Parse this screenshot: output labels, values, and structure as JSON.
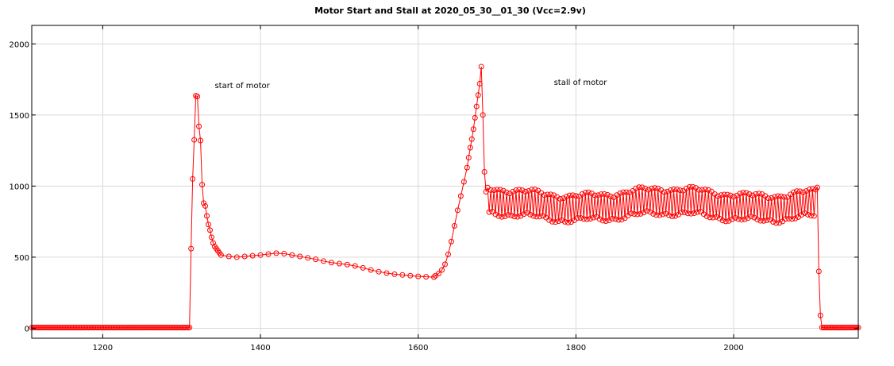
{
  "chart_data": {
    "type": "line",
    "title": "Motor Start and Stall at 2020_05_30__01_30 (Vcc=2.9v)",
    "xlabel": "",
    "ylabel": "",
    "xlim": [
      1110,
      2158
    ],
    "ylim": [
      -70,
      2130
    ],
    "grid": true,
    "legend": "none",
    "x_ticks": [
      1200,
      1400,
      1600,
      1800,
      2000
    ],
    "y_ticks": [
      0,
      500,
      1000,
      1500,
      2000
    ],
    "x_tick_labels": [
      "1200",
      "1400",
      "1600",
      "1800",
      "2000"
    ],
    "y_tick_labels": [
      "0",
      "500",
      "1000",
      "1500",
      "2000"
    ],
    "annotations": [
      {
        "text": "start of motor",
        "x": 1342,
        "y": 1690
      },
      {
        "text": "stall of motor",
        "x": 1772,
        "y": 1710
      }
    ],
    "series": [
      {
        "color": "#ff0000",
        "marker": "circle",
        "x_start": 1110,
        "x_step": 2,
        "segments": [
          {
            "kind": "const",
            "from": 1110,
            "to": 1310,
            "y": 5
          },
          {
            "kind": "points",
            "x": [
              1312,
              1314,
              1316,
              1318,
              1320,
              1322,
              1324,
              1326,
              1328,
              1330,
              1332,
              1334,
              1336,
              1338,
              1340,
              1342,
              1344,
              1346,
              1348
            ],
            "y": [
              560,
              1050,
              1325,
              1635,
              1630,
              1420,
              1320,
              1010,
              880,
              860,
              790,
              730,
              690,
              640,
              600,
              575,
              560,
              545,
              530
            ]
          },
          {
            "kind": "points",
            "x": [
              1350,
              1360,
              1370,
              1380,
              1390,
              1400,
              1410,
              1420,
              1430,
              1440,
              1450,
              1460,
              1470,
              1480,
              1490,
              1500,
              1510,
              1520,
              1530,
              1540,
              1550,
              1560,
              1570,
              1580,
              1590,
              1600,
              1610,
              1620
            ],
            "y": [
              515,
              505,
              500,
              505,
              510,
              515,
              522,
              528,
              525,
              515,
              505,
              495,
              485,
              472,
              462,
              455,
              448,
              438,
              425,
              410,
              398,
              388,
              380,
              375,
              370,
              365,
              362,
              360
            ]
          },
          {
            "kind": "points",
            "x": [
              1622,
              1626,
              1630,
              1634,
              1638,
              1642,
              1646,
              1650,
              1654,
              1658,
              1662,
              1664,
              1666,
              1668,
              1670,
              1672,
              1674,
              1676,
              1678,
              1680,
              1682,
              1684,
              1686
            ],
            "y": [
              370,
              385,
              410,
              450,
              520,
              610,
              720,
              830,
              930,
              1030,
              1130,
              1200,
              1270,
              1330,
              1400,
              1480,
              1560,
              1640,
              1720,
              1840,
              1500,
              1100,
              960
            ]
          },
          {
            "kind": "oscillate",
            "from": 1688,
            "to": 2104,
            "center": 870,
            "amplitude": 95
          },
          {
            "kind": "points",
            "x": [
              2106,
              2108,
              2110
            ],
            "y": [
              990,
              400,
              90
            ]
          },
          {
            "kind": "const",
            "from": 2112,
            "to": 2158,
            "y": 5
          }
        ]
      }
    ]
  }
}
